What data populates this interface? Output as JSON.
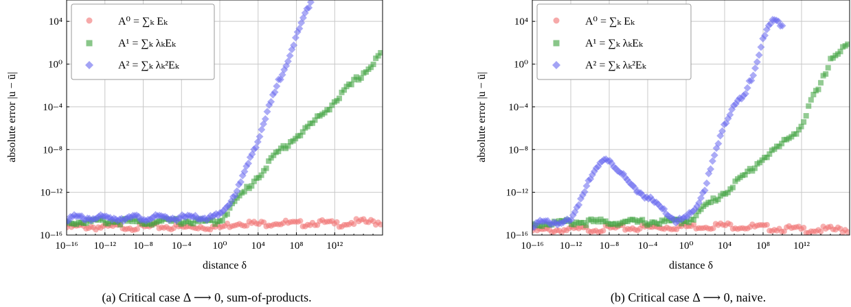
{
  "chart_data": [
    {
      "type": "scatter",
      "panel": "a",
      "caption": "(a) Critical case Δ ⟶ 0, sum-of-products.",
      "xlabel": "distance δ",
      "ylabel": "absolute error |u − ū|",
      "xscale": "log",
      "yscale": "log",
      "xlim": [
        -16,
        17
      ],
      "ylim": [
        -16,
        6
      ],
      "xticks": [
        -16,
        -12,
        -8,
        -4,
        0,
        4,
        8,
        12
      ],
      "yticks": [
        -16,
        -12,
        -8,
        -4,
        0,
        4
      ],
      "grid": true,
      "legend_position": "top-left",
      "series": [
        {
          "name": "A⁰ = ∑ₖ Eₖ",
          "color": "#f07070",
          "marker": "circle",
          "x": [
            -16,
            -14,
            -12,
            -10,
            -8,
            -6,
            -4,
            -2,
            0,
            2,
            4,
            6,
            8,
            10,
            12,
            14,
            16.8
          ],
          "y": [
            -15.3,
            -15.2,
            -15.3,
            -15.2,
            -15.3,
            -15.2,
            -15.3,
            -15.2,
            -15.3,
            -14.8,
            -15.0,
            -14.8,
            -15.0,
            -14.8,
            -15.0,
            -14.8,
            -14.8
          ]
        },
        {
          "name": "A¹ = ∑ₖ λₖEₖ",
          "color": "#3aa03a",
          "marker": "square",
          "x": [
            -16,
            -12,
            -8,
            -4,
            -1,
            0,
            1,
            2,
            4,
            6,
            8,
            10,
            12,
            14,
            16,
            16.8
          ],
          "y": [
            -14.8,
            -14.7,
            -14.8,
            -14.7,
            -14.8,
            -14.7,
            -13.5,
            -12.5,
            -10.5,
            -8.3,
            -6.8,
            -5.3,
            -3.5,
            -1.7,
            0.0,
            1.0
          ]
        },
        {
          "name": "A² = ∑ₖ λₖ²Eₖ",
          "color": "#6666ee",
          "marker": "diamond",
          "x": [
            -16,
            -12,
            -8,
            -4,
            -1,
            0,
            1,
            2,
            4,
            6,
            8,
            9.5
          ],
          "y": [
            -14.4,
            -14.4,
            -14.4,
            -14.4,
            -14.4,
            -14.2,
            -13.0,
            -11.5,
            -7.0,
            -2.0,
            2.5,
            6.0
          ]
        }
      ]
    },
    {
      "type": "scatter",
      "panel": "b",
      "caption": "(b) Critical case Δ ⟶ 0, naive.",
      "xlabel": "distance δ",
      "ylabel": "absolute error |u − ū|",
      "xscale": "log",
      "yscale": "log",
      "xlim": [
        -16,
        17
      ],
      "ylim": [
        -16,
        6
      ],
      "xticks": [
        -16,
        -12,
        -8,
        -4,
        0,
        4,
        8,
        12
      ],
      "yticks": [
        -16,
        -12,
        -8,
        -4,
        0,
        4
      ],
      "grid": true,
      "legend_position": "top-left",
      "series": [
        {
          "name": "A⁰ = ∑ₖ Eₖ",
          "color": "#f07070",
          "marker": "circle",
          "x": [
            -16,
            -12,
            -8,
            -4,
            0,
            4,
            8,
            12,
            16.8
          ],
          "y": [
            -15.6,
            -15.5,
            -15.4,
            -15.3,
            -15.2,
            -15.1,
            -15.3,
            -15.5,
            -15.5
          ]
        },
        {
          "name": "A¹ = ∑ₖ λₖEₖ",
          "color": "#3aa03a",
          "marker": "square",
          "x": [
            -16,
            -12,
            -8,
            -4,
            0,
            1,
            2,
            4,
            6,
            8,
            10,
            12,
            13,
            14,
            15,
            16.8
          ],
          "y": [
            -15.0,
            -14.8,
            -14.8,
            -14.8,
            -14.7,
            -14.2,
            -13.3,
            -12.0,
            -10.5,
            -8.8,
            -7.5,
            -5.8,
            -3.5,
            -2.0,
            0.5,
            1.8
          ]
        },
        {
          "name": "A² = ∑ₖ λₖ²Eₖ",
          "color": "#6666ee",
          "marker": "diamond",
          "x": [
            -16,
            -14,
            -12,
            -10,
            -9,
            -8,
            -7,
            -6,
            -4,
            -2,
            -1,
            0,
            1,
            2,
            3,
            4,
            5,
            6,
            7,
            8,
            9,
            10
          ],
          "y": [
            -15.0,
            -14.8,
            -14.8,
            -10.5,
            -9.5,
            -8.8,
            -10.0,
            -11.2,
            -12.5,
            -14.0,
            -14.7,
            -14.5,
            -13.5,
            -11.5,
            -8.5,
            -5.5,
            -3.8,
            -3.2,
            -0.8,
            2.5,
            4.0,
            3.8
          ]
        }
      ]
    }
  ]
}
